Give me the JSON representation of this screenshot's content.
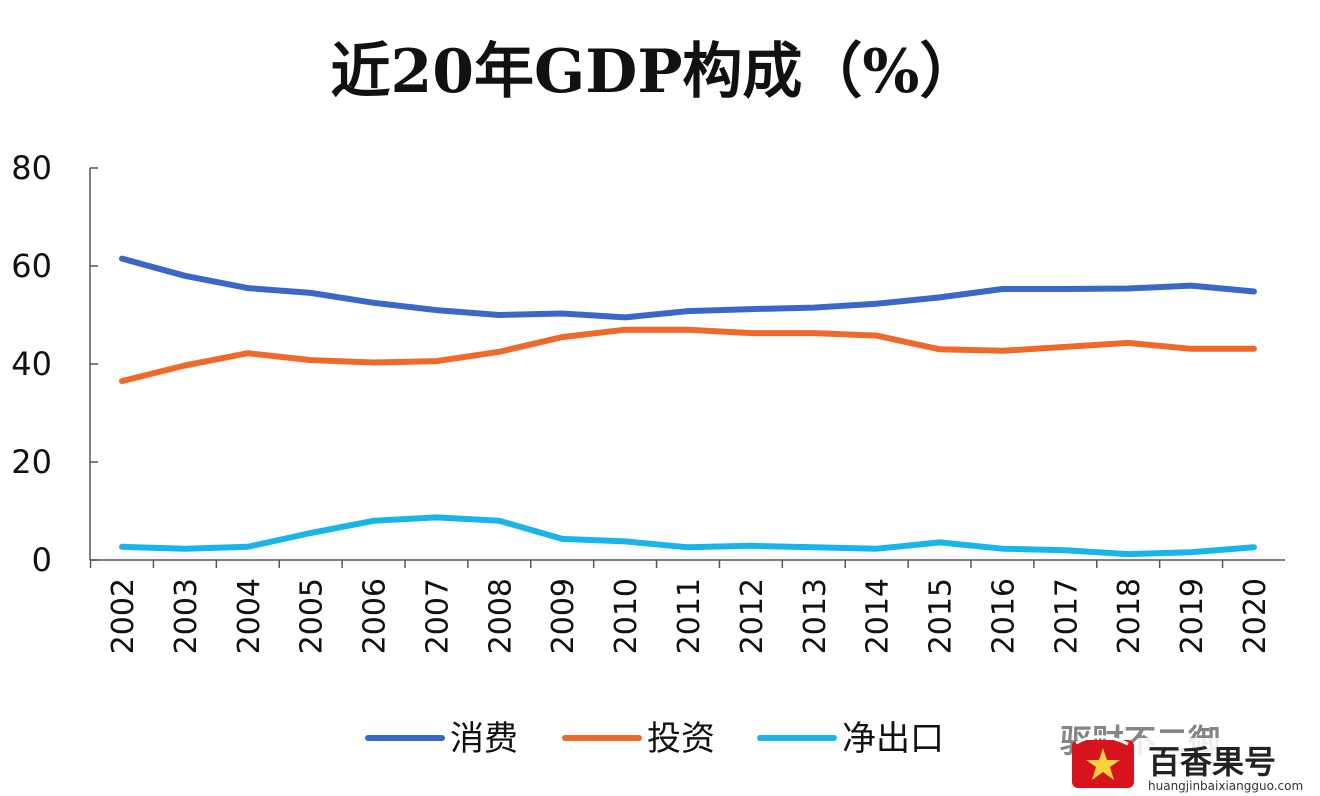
{
  "chart_data": {
    "type": "line",
    "title": "近20年GDP构成（%）",
    "xlabel": "",
    "ylabel": "",
    "ylim": [
      0,
      80
    ],
    "yticks": [
      0,
      20,
      40,
      60,
      80
    ],
    "x": [
      "2002",
      "2003",
      "2004",
      "2005",
      "2006",
      "2007",
      "2008",
      "2009",
      "2010",
      "2011",
      "2012",
      "2013",
      "2014",
      "2015",
      "2016",
      "2017",
      "2018",
      "2019",
      "2020"
    ],
    "series": [
      {
        "name": "消费",
        "color": "#3a68c9",
        "values": [
          61.5,
          58.0,
          55.5,
          54.5,
          52.5,
          51.0,
          50.0,
          50.3,
          49.5,
          50.8,
          51.2,
          51.5,
          52.3,
          53.6,
          55.3,
          55.3,
          55.4,
          56.0,
          54.8
        ]
      },
      {
        "name": "投资",
        "color": "#ee6a2a",
        "values": [
          36.5,
          39.7,
          42.2,
          40.8,
          40.3,
          40.6,
          42.5,
          45.5,
          47.0,
          47.0,
          46.3,
          46.3,
          45.8,
          43.0,
          42.7,
          43.5,
          44.3,
          43.1,
          43.1
        ]
      },
      {
        "name": "净出口",
        "color": "#19b5ea",
        "values": [
          2.7,
          2.3,
          2.7,
          5.5,
          8.0,
          8.7,
          8.0,
          4.3,
          3.8,
          2.6,
          2.9,
          2.6,
          2.3,
          3.6,
          2.3,
          2.0,
          1.2,
          1.6,
          2.6
        ]
      }
    ],
    "grid": false,
    "legend_position": "bottom"
  },
  "watermark": {
    "brand": "百香果号",
    "url": "huangjinbaixiangguo.com",
    "partial_text": "驱财不二御",
    "logo_colors": [
      "#d7131b",
      "#f7d23e"
    ]
  }
}
